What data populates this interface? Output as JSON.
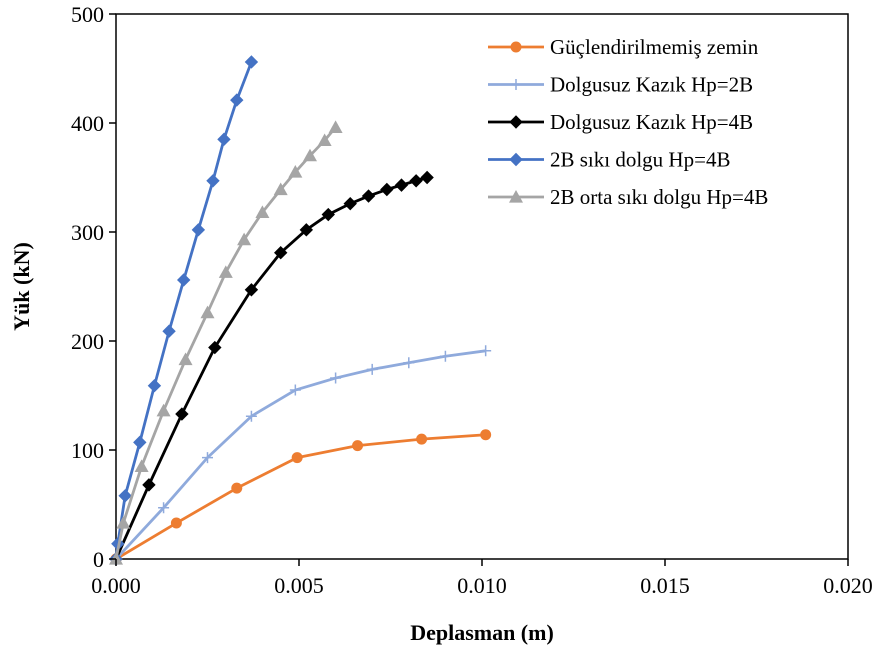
{
  "chart_data": {
    "type": "line",
    "title": "",
    "xlabel": "Deplasman (m)",
    "ylabel": "Yük (kN)",
    "xlim": [
      0,
      0.02
    ],
    "ylim": [
      0,
      500
    ],
    "xticks": [
      0,
      0.005,
      0.01,
      0.015,
      0.02
    ],
    "xtick_labels": [
      "0.000",
      "0.005",
      "0.010",
      "0.015",
      "0.020"
    ],
    "yticks": [
      0,
      100,
      200,
      300,
      400,
      500
    ],
    "ytick_labels": [
      "0",
      "100",
      "200",
      "300",
      "400",
      "500"
    ],
    "grid": false,
    "legend_position": "top-right",
    "series": [
      {
        "name": "Güçlendirilmemiş zemin",
        "color": "#ED7D31",
        "marker": "circle",
        "x": [
          0,
          0.00165,
          0.0033,
          0.00495,
          0.0066,
          0.00835,
          0.0101
        ],
        "y": [
          0,
          33,
          65,
          93,
          104,
          110,
          114
        ]
      },
      {
        "name": "Dolgusuz Kazık Hp=2B",
        "color": "#8FAADC",
        "marker": "plus",
        "x": [
          0,
          0.0013,
          0.0025,
          0.0037,
          0.0049,
          0.006,
          0.007,
          0.008,
          0.009,
          0.0101
        ],
        "y": [
          0,
          47,
          93,
          131,
          155,
          166,
          174,
          180,
          186,
          191
        ]
      },
      {
        "name": "Dolgusuz Kazık Hp=4B",
        "color": "#000000",
        "marker": "diamond",
        "x": [
          0,
          0.0009,
          0.0018,
          0.0027,
          0.0037,
          0.0045,
          0.0052,
          0.0058,
          0.0064,
          0.0069,
          0.0074,
          0.0078,
          0.0082,
          0.0085
        ],
        "y": [
          0,
          68,
          133,
          194,
          247,
          281,
          302,
          316,
          326,
          333,
          339,
          343,
          347,
          350
        ]
      },
      {
        "name": "2B sıkı dolgu Hp=4B",
        "color": "#4472C4",
        "marker": "diamond",
        "x": [
          0,
          5e-05,
          0.00025,
          0.00065,
          0.00105,
          0.00145,
          0.00185,
          0.00225,
          0.00265,
          0.00295,
          0.0033,
          0.0037
        ],
        "y": [
          0,
          14,
          58,
          107,
          159,
          209,
          256,
          302,
          347,
          385,
          421,
          456
        ]
      },
      {
        "name": "2B orta sıkı dolgu Hp=4B",
        "color": "#A5A5A5",
        "marker": "triangle",
        "x": [
          0,
          0.0002,
          0.0007,
          0.0013,
          0.0019,
          0.0025,
          0.003,
          0.0035,
          0.004,
          0.0045,
          0.0049,
          0.0053,
          0.0057,
          0.006
        ],
        "y": [
          0,
          33,
          85,
          136,
          183,
          226,
          263,
          293,
          318,
          339,
          355,
          370,
          384,
          396
        ]
      }
    ]
  }
}
